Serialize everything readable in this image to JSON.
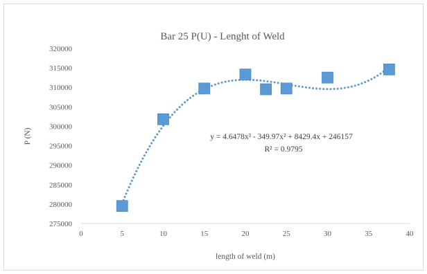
{
  "chart_data": {
    "type": "scatter",
    "title": "Bar 25    P(U)    - Lenght of Weld",
    "xlabel": "length of weld (m)",
    "ylabel": "P (N)",
    "xlim": [
      0,
      40
    ],
    "ylim": [
      275000,
      320000
    ],
    "x_ticks": [
      0,
      5,
      10,
      15,
      20,
      25,
      30,
      35,
      40
    ],
    "y_ticks": [
      275000,
      280000,
      285000,
      290000,
      295000,
      300000,
      305000,
      310000,
      315000,
      320000
    ],
    "grid": false,
    "legend": "none",
    "series": [
      {
        "marker": "square",
        "color": "#5b9bd5",
        "points": [
          {
            "x": 5,
            "y": 279500
          },
          {
            "x": 10,
            "y": 301800
          },
          {
            "x": 15,
            "y": 309700
          },
          {
            "x": 20,
            "y": 313300
          },
          {
            "x": 22.5,
            "y": 309500
          },
          {
            "x": 25,
            "y": 309700
          },
          {
            "x": 30,
            "y": 312500
          },
          {
            "x": 37.5,
            "y": 314600
          }
        ]
      }
    ],
    "trendline": {
      "type": "polynomial",
      "style": "dotted",
      "color": "#5b9bd5",
      "x_range": [
        5,
        37.5
      ],
      "coefficients": {
        "a3": 4.6478,
        "a2": -349.97,
        "a1": 8429.4,
        "a0": 246157
      }
    },
    "annotations": {
      "equation": "y = 4.6478x³ - 349.97x² + 8429.4x + 246157",
      "r_squared": "R² = 0.9795"
    }
  }
}
